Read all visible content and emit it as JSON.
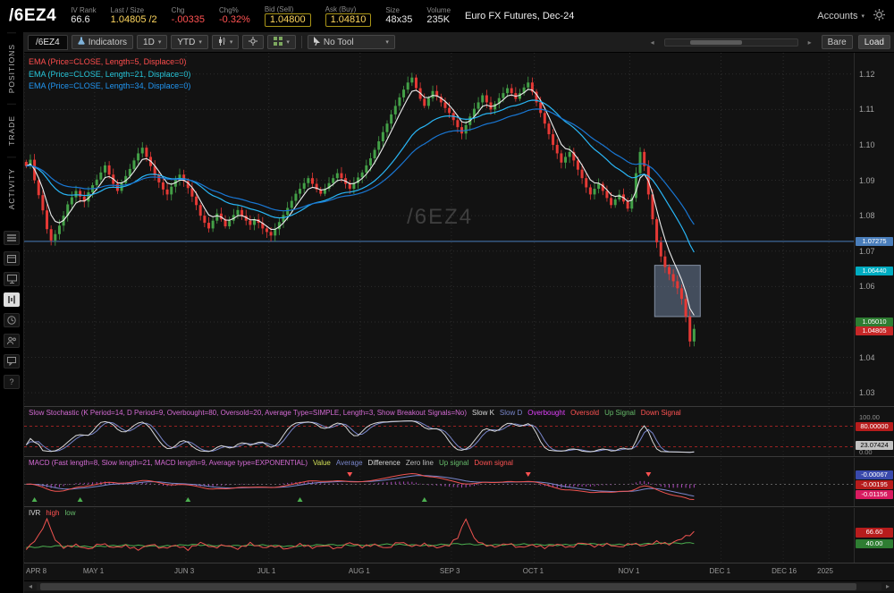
{
  "header": {
    "symbol": "/6EZ4",
    "description": "Euro FX Futures, Dec-24",
    "accounts_label": "Accounts",
    "stats": [
      {
        "label": "IV Rank",
        "value": "66.6",
        "color": "#e8e8e8",
        "boxed": false
      },
      {
        "label": "Last / Size",
        "value": "1.04805 /2",
        "color": "#ffd75e",
        "boxed": false
      },
      {
        "label": "Chg",
        "value": "-.00335",
        "color": "#ff5252",
        "boxed": false
      },
      {
        "label": "Chg%",
        "value": "-0.32%",
        "color": "#ff5252",
        "boxed": false
      },
      {
        "label": "Bid (Sell)",
        "value": "1.04800",
        "color": "#ffd75e",
        "boxed": true
      },
      {
        "label": "Ask (Buy)",
        "value": "1.04810",
        "color": "#ffd75e",
        "boxed": true
      },
      {
        "label": "Size",
        "value": "48x35",
        "color": "#e8e8e8",
        "boxed": false
      },
      {
        "label": "Volume",
        "value": "235K",
        "color": "#e8e8e8",
        "boxed": false
      }
    ]
  },
  "sidebar": {
    "tabs": [
      "POSITIONS",
      "TRADE",
      "ACTIVITY"
    ],
    "icons": [
      "menu-icon",
      "calendar-icon",
      "monitor-icon",
      "chart-icon",
      "clock-icon",
      "people-icon",
      "chat-icon",
      "help-icon"
    ],
    "active_icon": "chart-icon"
  },
  "toolbar": {
    "tab": "/6EZ4",
    "indicators_label": "Indicators",
    "timeframe": "1D",
    "range": "YTD",
    "tool_label": "No Tool",
    "bare_label": "Bare",
    "load_label": "Load"
  },
  "watermark": "/6EZ4",
  "ema_legend": [
    {
      "text": "EMA (Price=CLOSE, Length=5, Displace=0)",
      "color": "#ff4d4d"
    },
    {
      "text": "EMA (Price=CLOSE, Length=21, Displace=0)",
      "color": "#26c6da"
    },
    {
      "text": "EMA (Price=CLOSE, Length=34, Displace=0)",
      "color": "#2196f3"
    }
  ],
  "chart_data": {
    "type": "candlestick",
    "symbol": "/6EZ4",
    "timeframe": "1D YTD",
    "price_range": {
      "top": 1.126,
      "bottom": 1.026
    },
    "price_ticks": [
      1.12,
      1.11,
      1.1,
      1.09,
      1.08,
      1.07,
      1.06,
      1.05,
      1.04,
      1.03
    ],
    "total_slots": 200,
    "colors": {
      "up": "#43a047",
      "down": "#e53935",
      "grid": "#2c2c2c",
      "hline": "#4a7ebb",
      "ema5": "#ededed",
      "ema21": "#29b6f6",
      "ema34": "#1976d2"
    },
    "hline": {
      "value": 1.07275
    },
    "selection_box": {
      "start_bar": 152,
      "end_bar": 163,
      "top": 1.066,
      "bottom": 1.0515
    },
    "axis_bubbles": [
      {
        "text": "1.07275",
        "bg": "#4a7ebb",
        "fg": "#fff",
        "price": 1.07275
      },
      {
        "text": "1.06440",
        "bg": "#00acc1",
        "fg": "#fff",
        "price": 1.0644
      },
      {
        "text": "1.05010",
        "bg": "#2e7d32",
        "fg": "#fff",
        "price": 1.0501
      },
      {
        "text": "1.04805",
        "bg": "#c62828",
        "fg": "#fff",
        "price": 1.04805
      }
    ],
    "x_ticks": [
      {
        "label": "APR 8",
        "i": 0
      },
      {
        "label": "MAY 1",
        "i": 17
      },
      {
        "label": "JUN 3",
        "i": 39
      },
      {
        "label": "JUL 1",
        "i": 59
      },
      {
        "label": "AUG 1",
        "i": 81
      },
      {
        "label": "SEP 3",
        "i": 103
      },
      {
        "label": "OCT 1",
        "i": 123
      },
      {
        "label": "NOV 1",
        "i": 146
      },
      {
        "label": "DEC 1",
        "i": 168
      },
      {
        "label": "DEC 16",
        "i": 183
      },
      {
        "label": "2025",
        "i": 194
      }
    ],
    "closes": [
      1.094,
      1.0958,
      1.09,
      1.0858,
      1.0815,
      1.0762,
      1.073,
      1.0748,
      1.0772,
      1.08,
      1.0832,
      1.0852,
      1.087,
      1.0854,
      1.084,
      1.0866,
      1.0886,
      1.0902,
      1.0922,
      1.0942,
      1.0916,
      1.089,
      1.087,
      1.0892,
      1.0912,
      1.0932,
      1.0956,
      1.0976,
      1.0992,
      1.0966,
      1.094,
      1.0914,
      1.0894,
      1.0874,
      1.086,
      1.0882,
      1.0902,
      1.0916,
      1.0898,
      1.0878,
      1.0854,
      1.083,
      1.08,
      1.078,
      1.0764,
      1.0786,
      1.0806,
      1.079,
      1.077,
      1.0786,
      1.0802,
      1.0816,
      1.08,
      1.0786,
      1.0774,
      1.079,
      1.078,
      1.0764,
      1.0754,
      1.0744,
      1.0762,
      1.0782,
      1.0802,
      1.0822,
      1.0842,
      1.0862,
      1.0876,
      1.0892,
      1.0906,
      1.089,
      1.0874,
      1.0862,
      1.0876,
      1.0892,
      1.0906,
      1.092,
      1.0906,
      1.089,
      1.0876,
      1.0892,
      1.0908,
      1.0922,
      1.0942,
      1.0962,
      1.0986,
      1.101,
      1.1036,
      1.106,
      1.1086,
      1.111,
      1.1134,
      1.1156,
      1.1176,
      1.119,
      1.116,
      1.113,
      1.111,
      1.1132,
      1.1152,
      1.1136,
      1.112,
      1.1104,
      1.109,
      1.107,
      1.105,
      1.1032,
      1.1056,
      1.108,
      1.1102,
      1.112,
      1.114,
      1.112,
      1.11,
      1.1116,
      1.1132,
      1.1146,
      1.116,
      1.1146,
      1.113,
      1.1146,
      1.1162,
      1.1176,
      1.115,
      1.112,
      1.109,
      1.106,
      1.103,
      1.1,
      1.0976,
      1.095,
      1.0966,
      1.098,
      1.0956,
      1.093,
      1.0906,
      1.088,
      1.086,
      1.0876,
      1.089,
      1.087,
      1.085,
      1.083,
      1.0846,
      1.086,
      1.084,
      1.082,
      1.085,
      1.092,
      1.098,
      1.094,
      1.086,
      1.079,
      1.0725,
      1.0685,
      1.0655,
      1.0635,
      1.0615,
      1.0595,
      1.0565,
      1.0515,
      1.0445,
      1.04805
    ]
  },
  "stochastic": {
    "label": "Slow Stochastic (K Period=14, D Period=9, Overbought=80, Oversold=20, Average Type=SIMPLE, Length=3, Show Breakout Signals=No)",
    "label_color": "#d36ad3",
    "tokens": [
      {
        "text": "Slow K",
        "color": "#d9d9d9"
      },
      {
        "text": "Slow D",
        "color": "#7986cb"
      },
      {
        "text": "Overbought",
        "color": "#e040fb"
      },
      {
        "text": "Oversold",
        "color": "#ff5252"
      },
      {
        "text": "Up Signal",
        "color": "#66bb6a"
      },
      {
        "text": "Down Signal",
        "color": "#ff5252"
      }
    ],
    "overbought": 80,
    "oversold": 20,
    "axis_top": "100.00",
    "axis_bottom": "0.00",
    "bubbles": [
      {
        "text": "80.00000",
        "bg": "#b71c1c",
        "fg": "#fff",
        "value": 80
      },
      {
        "text": "23.07424",
        "bg": "#c2c2c2",
        "fg": "#000",
        "value": 23.07
      }
    ]
  },
  "macd": {
    "label": "MACD (Fast length=8, Slow length=21, MACD length=9, Average type=EXPONENTIAL)",
    "label_color": "#d36ad3",
    "tokens": [
      {
        "text": "Value",
        "color": "#d4e157"
      },
      {
        "text": "Average",
        "color": "#7986cb"
      },
      {
        "text": "Difference",
        "color": "#d9d9d9"
      },
      {
        "text": "Zero line",
        "color": "#bdbdbd"
      },
      {
        "text": "Up signal",
        "color": "#66bb6a"
      },
      {
        "text": "Down signal",
        "color": "#ff5252"
      }
    ],
    "bubbles": [
      {
        "text": "-0.00067",
        "bg": "#3949ab",
        "fg": "#fff"
      },
      {
        "text": "-0.00195",
        "bg": "#b71c1c",
        "fg": "#fff"
      },
      {
        "text": "-0.01156",
        "bg": "#d81b60",
        "fg": "#fff"
      }
    ],
    "up_signals": [
      2,
      13,
      39,
      66,
      96
    ],
    "down_signals": [
      78,
      121,
      150
    ]
  },
  "ivr": {
    "label": "IVR",
    "label_color": "#d9d9d9",
    "tokens": [
      {
        "text": "high",
        "color": "#ff5252"
      },
      {
        "text": "low",
        "color": "#66bb6a"
      }
    ],
    "bubbles": [
      {
        "text": "66.60",
        "bg": "#b71c1c",
        "fg": "#fff",
        "value": 66.6
      },
      {
        "text": "40.00",
        "bg": "#2e7d32",
        "fg": "#fff",
        "value": 40
      }
    ],
    "high_points": [
      [
        0,
        25
      ],
      [
        3,
        58
      ],
      [
        5,
        100
      ],
      [
        7,
        48
      ],
      [
        9,
        30
      ],
      [
        12,
        36
      ],
      [
        15,
        26
      ],
      [
        18,
        40
      ],
      [
        21,
        30
      ],
      [
        24,
        34
      ],
      [
        27,
        25
      ],
      [
        30,
        38
      ],
      [
        33,
        28
      ],
      [
        36,
        35
      ],
      [
        39,
        26
      ],
      [
        42,
        42
      ],
      [
        45,
        30
      ],
      [
        48,
        36
      ],
      [
        51,
        27
      ],
      [
        54,
        40
      ],
      [
        57,
        30
      ],
      [
        60,
        34
      ],
      [
        63,
        26
      ],
      [
        66,
        38
      ],
      [
        69,
        30
      ],
      [
        72,
        35
      ],
      [
        75,
        27
      ],
      [
        78,
        42
      ],
      [
        81,
        32
      ],
      [
        84,
        37
      ],
      [
        87,
        28
      ],
      [
        90,
        44
      ],
      [
        93,
        33
      ],
      [
        96,
        38
      ],
      [
        99,
        30
      ],
      [
        102,
        36
      ],
      [
        104,
        55
      ],
      [
        106,
        100
      ],
      [
        108,
        52
      ],
      [
        110,
        38
      ],
      [
        113,
        32
      ],
      [
        116,
        40
      ],
      [
        119,
        30
      ],
      [
        122,
        36
      ],
      [
        125,
        30
      ],
      [
        128,
        38
      ],
      [
        131,
        30
      ],
      [
        134,
        42
      ],
      [
        137,
        33
      ],
      [
        140,
        38
      ],
      [
        143,
        31
      ],
      [
        146,
        40
      ],
      [
        149,
        34
      ],
      [
        152,
        44
      ],
      [
        155,
        38
      ],
      [
        158,
        52
      ],
      [
        161,
        66.6
      ]
    ],
    "low_points": [
      [
        0,
        30
      ],
      [
        8,
        34
      ],
      [
        16,
        32
      ],
      [
        24,
        36
      ],
      [
        32,
        33
      ],
      [
        40,
        37
      ],
      [
        48,
        34
      ],
      [
        56,
        36
      ],
      [
        64,
        33
      ],
      [
        72,
        37
      ],
      [
        80,
        35
      ],
      [
        88,
        38
      ],
      [
        96,
        35
      ],
      [
        104,
        39
      ],
      [
        112,
        36
      ],
      [
        120,
        38
      ],
      [
        128,
        36
      ],
      [
        136,
        39
      ],
      [
        144,
        37
      ],
      [
        152,
        40
      ],
      [
        161,
        41
      ]
    ]
  }
}
